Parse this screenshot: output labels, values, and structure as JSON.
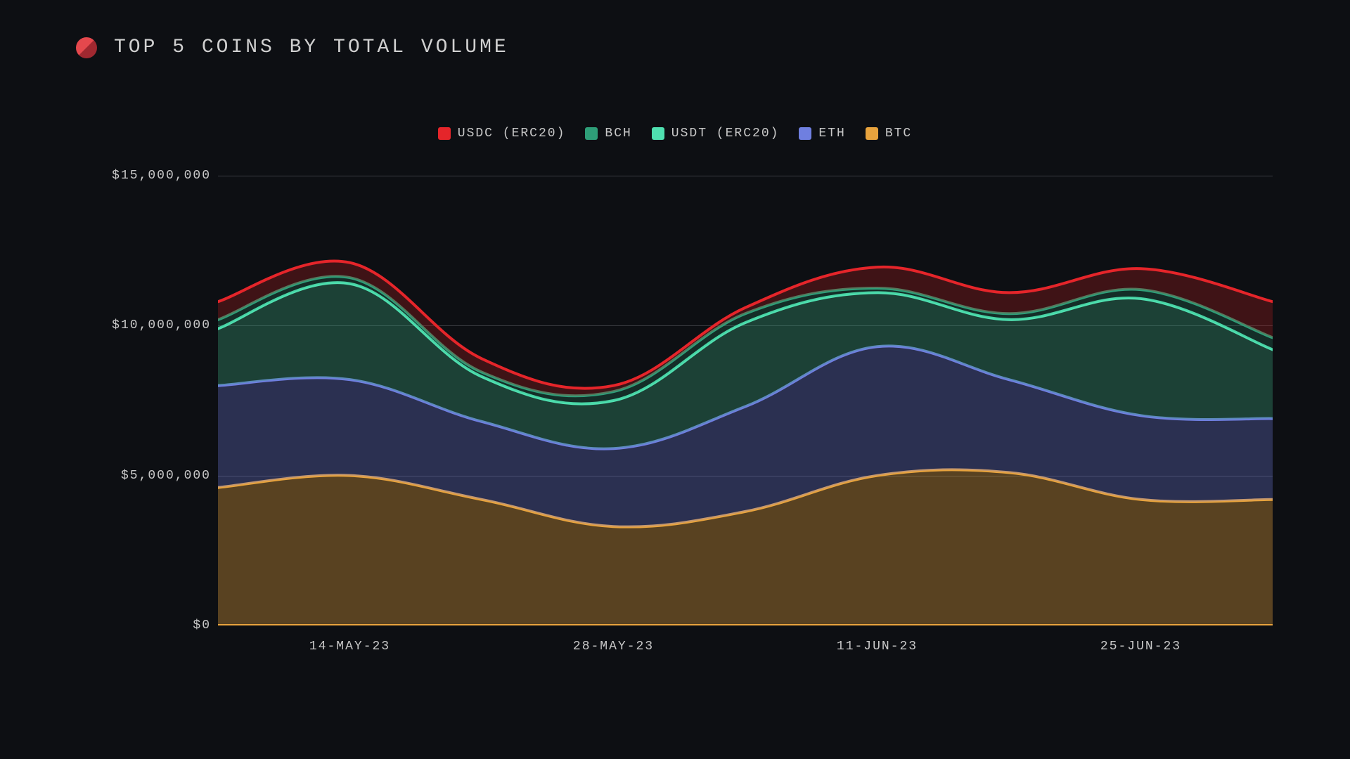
{
  "title": "TOP 5 COINS BY TOTAL VOLUME",
  "background_color": "#0d0f13",
  "grid_color": "#3a3c42",
  "text_color": "#c8c8c8",
  "logo_colors": [
    "#e5484d",
    "#a02830"
  ],
  "chart": {
    "type": "stacked-area",
    "y_axis": {
      "min": 0,
      "max": 15000000,
      "ticks": [
        {
          "value": 0,
          "label": "$0"
        },
        {
          "value": 5000000,
          "label": "$5,000,000"
        },
        {
          "value": 10000000,
          "label": "$10,000,000"
        },
        {
          "value": 15000000,
          "label": "$15,000,000"
        }
      ]
    },
    "x_axis": {
      "count": 9,
      "ticks": [
        {
          "index": 1,
          "label": "14-MAY-23"
        },
        {
          "index": 3,
          "label": "28-MAY-23"
        },
        {
          "index": 5,
          "label": "11-JUN-23"
        },
        {
          "index": 7,
          "label": "25-JUN-23"
        }
      ]
    },
    "series": [
      {
        "name": "BTC",
        "color": "#e8a33d",
        "fill": "rgba(232,163,61,0.35)",
        "values": [
          4600000,
          5000000,
          4200000,
          3300000,
          3800000,
          5000000,
          5100000,
          4200000,
          4200000
        ]
      },
      {
        "name": "ETH",
        "color": "#6f7fe0",
        "fill": "rgba(111,127,224,0.30)",
        "values": [
          3400000,
          3200000,
          2600000,
          2600000,
          3500000,
          4300000,
          3100000,
          2800000,
          2700000
        ]
      },
      {
        "name": "USDT (ERC20)",
        "color": "#4fe0b0",
        "fill": "rgba(56,160,120,0.35)",
        "values": [
          1900000,
          3200000,
          1500000,
          1600000,
          2800000,
          1800000,
          2000000,
          3900000,
          2300000
        ]
      },
      {
        "name": "BCH",
        "color": "#2e9e78",
        "fill": "rgba(46,158,120,0.22)",
        "values": [
          300000,
          200000,
          150000,
          300000,
          300000,
          150000,
          200000,
          300000,
          400000
        ]
      },
      {
        "name": "USDC (ERC20)",
        "color": "#e5252a",
        "fill": "rgba(180,30,30,0.30)",
        "values": [
          600000,
          500000,
          450000,
          200000,
          200000,
          700000,
          700000,
          700000,
          1200000
        ]
      }
    ],
    "legend_order": [
      "USDC (ERC20)",
      "BCH",
      "USDT (ERC20)",
      "ETH",
      "BTC"
    ],
    "line_width": 4,
    "smooth": true
  }
}
